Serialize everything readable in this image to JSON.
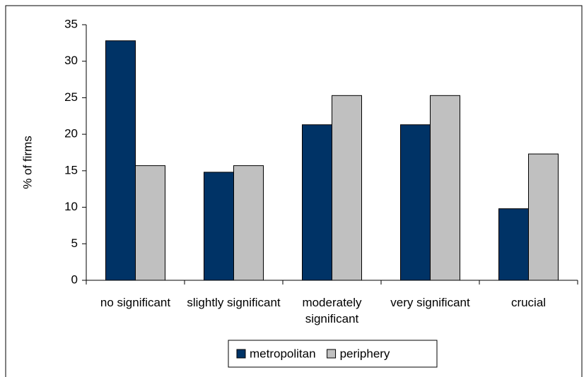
{
  "chart_data": {
    "type": "bar",
    "y_label": "% of firms",
    "categories": [
      "no significant",
      "slightly significant",
      "moderately significant",
      "very significant",
      "crucial"
    ],
    "series": [
      {
        "name": "metropolitan",
        "color": "#003366",
        "values": [
          32.8,
          14.8,
          21.3,
          21.3,
          9.8
        ]
      },
      {
        "name": "periphery",
        "color": "#c0c0c0",
        "values": [
          15.7,
          15.7,
          25.3,
          25.3,
          17.3
        ]
      }
    ],
    "ylim": [
      0,
      35
    ],
    "yticks": [
      0,
      5,
      10,
      15,
      20,
      25,
      30,
      35
    ],
    "grid": false,
    "legend": "bottom"
  }
}
